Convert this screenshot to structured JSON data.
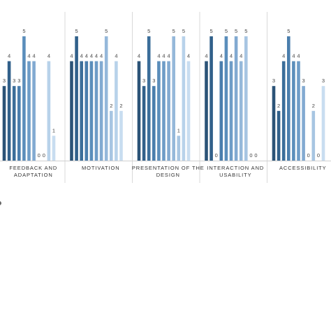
{
  "chart_data": {
    "type": "bar",
    "title": "",
    "xlabel": "",
    "ylabel": "",
    "ylim": [
      0,
      5
    ],
    "grid": false,
    "legend": "none",
    "categories": [
      [
        "FEEDBACK AND",
        "ADAPTATION"
      ],
      [
        "MOTIVATION"
      ],
      [
        "PRESENTATION OF THE",
        "DESIGN"
      ],
      [
        "INTERACTION AND",
        "USABILITY"
      ],
      [
        "ACCESSIBILITY"
      ]
    ],
    "series": [
      {
        "values": [
          3,
          4,
          4,
          4,
          3
        ]
      },
      {
        "values": [
          4,
          5,
          3,
          5,
          2
        ]
      },
      {
        "values": [
          3,
          4,
          5,
          0,
          4
        ]
      },
      {
        "values": [
          3,
          4,
          3,
          4,
          5
        ]
      },
      {
        "values": [
          5,
          4,
          4,
          5,
          4
        ]
      },
      {
        "values": [
          4,
          4,
          4,
          4,
          4
        ]
      },
      {
        "values": [
          4,
          4,
          4,
          5,
          3
        ]
      },
      {
        "values": [
          0,
          5,
          5,
          4,
          0
        ]
      },
      {
        "values": [
          0,
          2,
          1,
          5,
          2
        ]
      },
      {
        "values": [
          4,
          4,
          5,
          0,
          0
        ]
      },
      {
        "values": [
          1,
          2,
          4,
          0,
          3
        ]
      }
    ],
    "series_colors": [
      "#2b5377",
      "#31608a",
      "#3b6e9a",
      "#4a7ead",
      "#5b8ebb",
      "#6e9cc7",
      "#82aad1",
      "#95b8da",
      "#a7c5e2",
      "#b8d2ea",
      "#c8ddf0"
    ]
  }
}
